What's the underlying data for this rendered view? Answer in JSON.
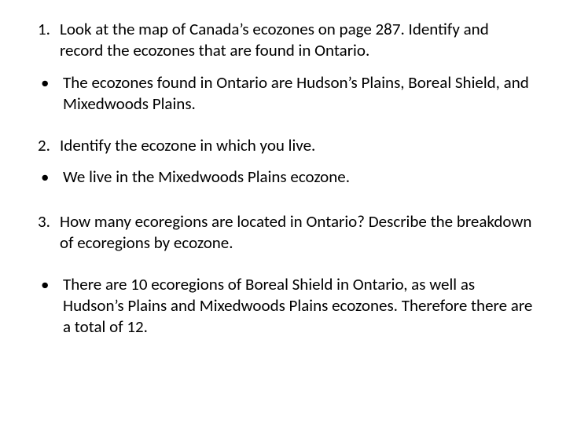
{
  "colors": {
    "text": "#000000",
    "background": "#ffffff"
  },
  "typography": {
    "font_family": "Calibri",
    "body_fontsize_pt": 16
  },
  "items": [
    {
      "kind": "numbered",
      "marker": "1.",
      "text": "Look at the map of Canada’s ecozones on page 287.   Identify and record the ecozones that are found in Ontario."
    },
    {
      "kind": "bulleted",
      "marker": "•",
      "text": "The ecozones found in Ontario are Hudson’s Plains, Boreal Shield, and Mixedwoods Plains."
    },
    {
      "kind": "numbered",
      "marker": "2.",
      "text": "Identify the ecozone in which you live."
    },
    {
      "kind": "bulleted",
      "marker": "•",
      "text": "We live in the Mixedwoods Plains ecozone."
    },
    {
      "kind": "numbered",
      "marker": "3.",
      "text": "How many ecoregions are located in Ontario?  Describe the breakdown of ecoregions by ecozone."
    },
    {
      "kind": "bulleted",
      "marker": "•",
      "text": "There are 10 ecoregions of Boreal Shield in Ontario, as well as Hudson’s Plains and Mixedwoods Plains ecozones.  Therefore there are a total of 12."
    }
  ]
}
